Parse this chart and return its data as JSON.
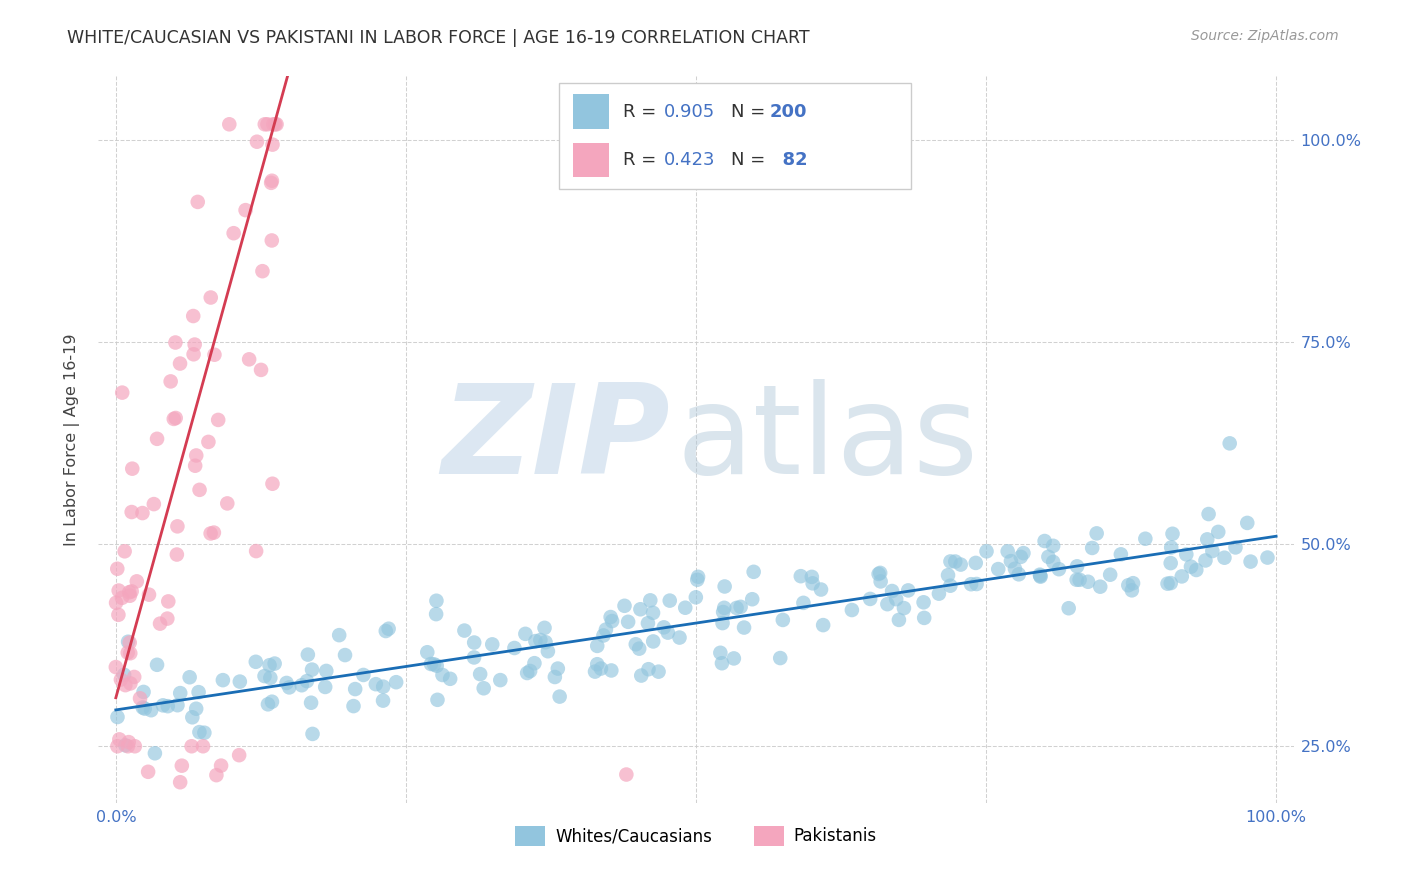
{
  "title": "WHITE/CAUCASIAN VS PAKISTANI IN LABOR FORCE | AGE 16-19 CORRELATION CHART",
  "source": "Source: ZipAtlas.com",
  "ylabel": "In Labor Force | Age 16-19",
  "blue_R": "0.905",
  "blue_N": "200",
  "pink_R": "0.423",
  "pink_N": "82",
  "blue_scatter_color": "#92c5de",
  "pink_scatter_color": "#f4a6be",
  "blue_line_color": "#1a6db5",
  "pink_line_color": "#d43c52",
  "title_color": "#333333",
  "source_color": "#999999",
  "axis_tick_color": "#4472c4",
  "ylabel_color": "#444444",
  "legend_label_color": "#333333",
  "legend_value_color": "#4472c4",
  "background_color": "#ffffff",
  "grid_color": "#cccccc",
  "watermark_zip_color": "#c5d8ea",
  "watermark_atlas_color": "#aec6d8",
  "blue_line_slope": 0.215,
  "blue_line_intercept": 0.295,
  "pink_line_slope": 5.2,
  "pink_line_intercept": 0.31,
  "xmin": 0.0,
  "xmax": 1.0,
  "ymin": 0.18,
  "ymax": 1.08,
  "seed": 7
}
